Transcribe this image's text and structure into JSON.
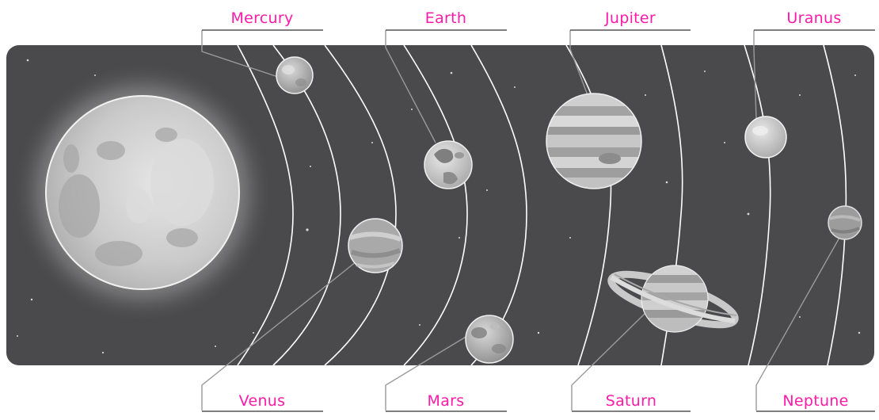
{
  "diagram": {
    "colors": {
      "background": "#4a4a4c",
      "label": "#ff1aa8",
      "orbit": "#ffffff",
      "leader": "#9a9a9a"
    },
    "labels": {
      "mercury": "Mercury",
      "earth": "Earth",
      "jupiter": "Jupiter",
      "uranus": "Uranus",
      "venus": "Venus",
      "mars": "Mars",
      "saturn": "Saturn",
      "neptune": "Neptune"
    }
  }
}
